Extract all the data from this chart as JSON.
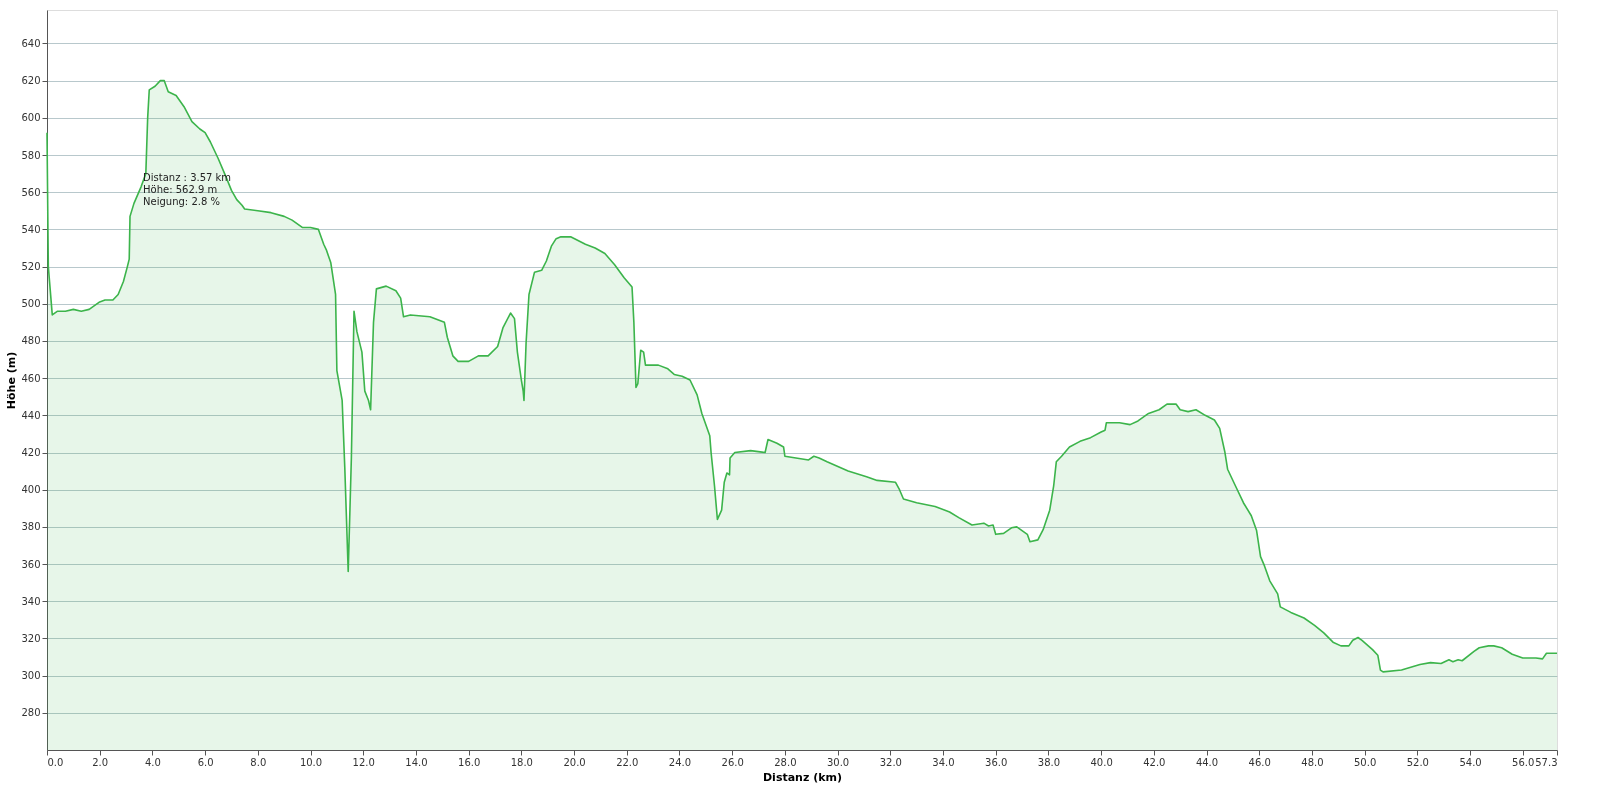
{
  "chart_data": {
    "type": "area",
    "xlabel": "Distanz (km)",
    "ylabel": "Höhe (m)",
    "xlim": [
      0,
      57.3
    ],
    "ylim": [
      260,
      658
    ],
    "xticks": [
      {
        "value": 0,
        "label": "0.0"
      },
      {
        "value": 2,
        "label": "2.0"
      },
      {
        "value": 4,
        "label": "4.0"
      },
      {
        "value": 6,
        "label": "6.0"
      },
      {
        "value": 8,
        "label": "8.0"
      },
      {
        "value": 10,
        "label": "10.0"
      },
      {
        "value": 12,
        "label": "12.0"
      },
      {
        "value": 14,
        "label": "14.0"
      },
      {
        "value": 16,
        "label": "16.0"
      },
      {
        "value": 18,
        "label": "18.0"
      },
      {
        "value": 20,
        "label": "20.0"
      },
      {
        "value": 22,
        "label": "22.0"
      },
      {
        "value": 24,
        "label": "24.0"
      },
      {
        "value": 26,
        "label": "26.0"
      },
      {
        "value": 28,
        "label": "28.0"
      },
      {
        "value": 30,
        "label": "30.0"
      },
      {
        "value": 32,
        "label": "32.0"
      },
      {
        "value": 34,
        "label": "34.0"
      },
      {
        "value": 36,
        "label": "36.0"
      },
      {
        "value": 38,
        "label": "38.0"
      },
      {
        "value": 40,
        "label": "40.0"
      },
      {
        "value": 42,
        "label": "42.0"
      },
      {
        "value": 44,
        "label": "44.0"
      },
      {
        "value": 46,
        "label": "46.0"
      },
      {
        "value": 48,
        "label": "48.0"
      },
      {
        "value": 50,
        "label": "50.0"
      },
      {
        "value": 52,
        "label": "52.0"
      },
      {
        "value": 54,
        "label": "54.0"
      },
      {
        "value": 56,
        "label": "56.0"
      },
      57.3
    ],
    "yticks": [
      280,
      300,
      320,
      340,
      360,
      380,
      400,
      420,
      440,
      460,
      480,
      500,
      520,
      540,
      560,
      580,
      600,
      620,
      640
    ],
    "grid": "y",
    "marker": "none",
    "line_style": "solid",
    "x": [
      0,
      0.05,
      0.2,
      0.4,
      0.7,
      1.0,
      1.3,
      1.6,
      1.8,
      2.0,
      2.2,
      2.5,
      2.7,
      2.9,
      3.05,
      3.12,
      3.15,
      3.3,
      3.57,
      3.75,
      3.82,
      3.88,
      4.1,
      4.3,
      4.45,
      4.6,
      4.9,
      5.2,
      5.5,
      5.8,
      6.0,
      6.2,
      6.5,
      6.8,
      7.0,
      7.2,
      7.4,
      7.5,
      8.0,
      8.5,
      9.0,
      9.3,
      9.7,
      10.0,
      10.3,
      10.5,
      10.6,
      10.77,
      10.95,
      11.0,
      11.2,
      11.3,
      11.43,
      11.55,
      11.65,
      11.76,
      11.95,
      12.06,
      12.2,
      12.28,
      12.39,
      12.5,
      12.87,
      13.24,
      13.42,
      13.53,
      13.79,
      14.53,
      15.08,
      15.19,
      15.4,
      15.6,
      16.0,
      16.37,
      16.74,
      17.1,
      17.3,
      17.59,
      17.74,
      17.85,
      18.0,
      18.07,
      18.1,
      18.18,
      18.29,
      18.5,
      18.77,
      18.95,
      19.14,
      19.32,
      19.5,
      19.87,
      20.43,
      20.8,
      21.17,
      21.54,
      21.9,
      22.2,
      22.27,
      22.35,
      22.42,
      22.53,
      22.64,
      22.71,
      23.2,
      23.56,
      23.8,
      24.1,
      24.4,
      24.67,
      24.85,
      25.15,
      25.2,
      25.33,
      25.44,
      25.6,
      25.7,
      25.8,
      25.9,
      25.92,
      26.1,
      26.7,
      27.25,
      27.36,
      27.7,
      27.95,
      28.0,
      28.9,
      29.1,
      29.3,
      29.6,
      30.4,
      31.1,
      31.5,
      32.2,
      32.35,
      32.5,
      33.0,
      33.7,
      34.25,
      34.6,
      35.1,
      35.55,
      35.73,
      35.9,
      36.0,
      36.3,
      36.6,
      36.8,
      37.0,
      37.2,
      37.3,
      37.6,
      37.8,
      38.05,
      38.2,
      38.3,
      38.5,
      38.8,
      39.2,
      39.6,
      40.0,
      40.15,
      40.2,
      40.7,
      41.1,
      41.4,
      41.8,
      42.2,
      42.5,
      42.85,
      43.0,
      43.3,
      43.6,
      43.95,
      44.3,
      44.5,
      44.7,
      44.8,
      45.1,
      45.4,
      45.7,
      45.9,
      46.05,
      46.2,
      46.4,
      46.7,
      46.8,
      47.2,
      47.7,
      48.1,
      48.45,
      48.8,
      49.1,
      49.4,
      49.55,
      49.75,
      49.9,
      50.3,
      50.5,
      50.6,
      50.7,
      51.4,
      52.1,
      52.5,
      52.9,
      53.2,
      53.35,
      53.55,
      53.7,
      54.15,
      54.35,
      54.7,
      54.9,
      55.2,
      55.6,
      56.0,
      56.5,
      56.75,
      56.9,
      57.3
    ],
    "series": [
      {
        "color": "#3cb44b",
        "values": [
          592,
          520,
          494,
          496,
          496,
          497,
          496,
          497,
          499,
          501,
          502,
          502,
          505,
          512,
          520,
          524,
          547,
          554,
          562.9,
          570,
          600,
          615,
          617,
          620,
          620,
          614,
          612,
          606,
          598,
          594,
          592,
          587,
          578,
          568,
          561,
          556,
          553,
          551,
          550,
          549,
          547,
          545,
          541,
          541,
          540,
          532,
          529,
          522,
          505,
          464,
          448,
          412,
          356,
          417,
          496,
          485,
          474,
          453,
          448,
          443,
          490,
          508,
          509.5,
          507,
          503,
          493,
          494,
          493,
          490,
          482,
          472,
          469,
          469,
          472,
          472,
          477,
          487,
          495,
          492,
          474,
          459,
          453,
          448,
          479,
          505,
          517,
          518,
          523,
          531,
          535,
          536,
          536,
          532,
          530,
          527,
          521,
          514,
          509,
          490,
          455,
          457,
          475,
          474,
          467,
          467,
          465,
          462,
          461,
          459,
          451,
          441,
          429,
          420,
          402,
          384,
          389,
          404,
          409,
          408,
          417,
          420,
          421,
          420,
          427,
          425,
          423,
          418,
          416,
          418,
          417,
          415,
          410,
          407,
          405,
          404,
          400,
          395,
          393,
          391,
          388,
          385,
          381,
          382,
          380.5,
          381,
          376,
          376.5,
          379.5,
          380,
          378,
          376,
          372,
          373,
          378.5,
          389,
          402,
          415,
          418,
          423,
          426,
          428,
          431,
          432,
          436,
          436,
          435,
          437,
          441,
          443,
          446,
          446,
          443,
          442,
          443,
          440,
          437.5,
          433,
          420,
          411,
          402,
          393,
          386,
          378,
          364,
          359,
          351,
          344,
          337,
          334,
          331,
          327,
          323,
          318,
          316,
          316,
          319,
          320.5,
          319,
          314,
          311,
          303,
          302,
          303,
          306,
          307,
          306.5,
          308.5,
          307.5,
          308.5,
          308,
          313,
          315,
          316,
          316,
          315,
          311.5,
          309.5,
          309.5,
          309,
          312,
          312
        ]
      }
    ],
    "annotations": [
      {
        "text": "Distanz : 3.57 km\nHöhe: 562.9 m\nNeigung: 2.8 %",
        "x": 3.57,
        "y": 562.9
      }
    ]
  }
}
